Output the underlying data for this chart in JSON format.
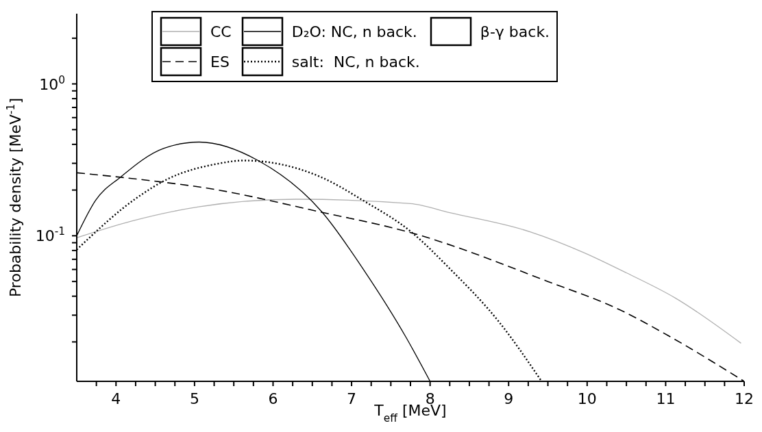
{
  "chart_data": {
    "type": "line",
    "xlabel": "T$_{eff}$ [MeV]",
    "ylabel": "Probability density [MeV$^{-1}$]",
    "log": "y",
    "legend": "top",
    "xlim": [
      3.5,
      12
    ],
    "ylim": [
      0.011,
      2.9
    ],
    "xticks": [
      {
        "value": 3.75,
        "label": null
      },
      4,
      {
        "value": 4.25,
        "label": null
      },
      {
        "value": 4.5,
        "label": null
      },
      {
        "value": 4.75,
        "label": null
      },
      5,
      {
        "value": 5.25,
        "label": null
      },
      {
        "value": 5.5,
        "label": null
      },
      {
        "value": 5.75,
        "label": null
      },
      6,
      {
        "value": 6.25,
        "label": null
      },
      {
        "value": 6.5,
        "label": null
      },
      {
        "value": 6.75,
        "label": null
      },
      7,
      {
        "value": 7.25,
        "label": null
      },
      {
        "value": 7.5,
        "label": null
      },
      {
        "value": 7.75,
        "label": null
      },
      8,
      {
        "value": 8.25,
        "label": null
      },
      {
        "value": 8.5,
        "label": null
      },
      {
        "value": 8.75,
        "label": null
      },
      9,
      {
        "value": 9.25,
        "label": null
      },
      {
        "value": 9.5,
        "label": null
      },
      {
        "value": 9.75,
        "label": null
      },
      10,
      {
        "value": 10.25,
        "label": null
      },
      {
        "value": 10.5,
        "label": null
      },
      {
        "value": 10.75,
        "label": null
      },
      11,
      {
        "value": 11.25,
        "label": null
      },
      {
        "value": 11.5,
        "label": null
      },
      {
        "value": 11.75,
        "label": null
      },
      12
    ],
    "yticks": [
      {
        "value": 0.02,
        "label": null
      },
      {
        "value": 0.03,
        "label": null
      },
      {
        "value": 0.04,
        "label": null
      },
      {
        "value": 0.05,
        "label": null
      },
      {
        "value": 0.06,
        "label": null
      },
      {
        "value": 0.07,
        "label": null
      },
      {
        "value": 0.08,
        "label": null
      },
      {
        "value": 0.09,
        "label": null
      },
      {
        "value": 0.1,
        "label": "10$^{-1}$"
      },
      {
        "value": 0.2,
        "label": null
      },
      {
        "value": 0.3,
        "label": null
      },
      {
        "value": 0.4,
        "label": null
      },
      {
        "value": 0.5,
        "label": null
      },
      {
        "value": 0.6,
        "label": null
      },
      {
        "value": 0.7,
        "label": null
      },
      {
        "value": 0.8,
        "label": null
      },
      {
        "value": 0.9,
        "label": null
      },
      {
        "value": 1,
        "label": "10$^{0}$"
      },
      {
        "value": 2,
        "label": null
      }
    ],
    "series": [
      {
        "name": "CC",
        "color": "#b0b0b0",
        "line_style": "solid",
        "x": [
          3.5,
          4.2,
          5.05,
          6.3,
          7.75,
          8.25,
          9.28,
          9.97,
          10.5,
          11.12,
          11.96
        ],
        "values": [
          0.097,
          0.125,
          0.155,
          0.174,
          0.163,
          0.142,
          0.106,
          0.077,
          0.057,
          0.039,
          0.0196
        ]
      },
      {
        "name": "ES",
        "color": "#000000",
        "line_style": "dashed",
        "x": [
          3.5,
          4.55,
          5.13,
          6.59,
          7.75,
          9.5,
          10.43,
          11.06,
          12
        ],
        "values": [
          0.26,
          0.227,
          0.207,
          0.144,
          0.105,
          0.05,
          0.0323,
          0.0216,
          0.011
        ]
      },
      {
        "name": "D₂O: NC, n back.",
        "color": "#000000",
        "line_style": "solid",
        "x": [
          3.5,
          3.74,
          4.06,
          4.61,
          5.06,
          5.81,
          6.62,
          7.17,
          7.69,
          8.0
        ],
        "values": [
          0.1,
          0.171,
          0.244,
          0.377,
          0.414,
          0.313,
          0.144,
          0.058,
          0.0216,
          0.011
        ]
      },
      {
        "name": "salt:  NC, n back.",
        "color": "#000000",
        "line_style": "dotted",
        "x": [
          3.5,
          4.26,
          4.64,
          5.28,
          5.63,
          6.59,
          7.17,
          7.75,
          8.25,
          8.88,
          9.42
        ],
        "values": [
          0.081,
          0.177,
          0.234,
          0.297,
          0.313,
          0.246,
          0.168,
          0.107,
          0.0608,
          0.027,
          0.011
        ]
      },
      {
        "name": "β-γ back."
      }
    ]
  }
}
